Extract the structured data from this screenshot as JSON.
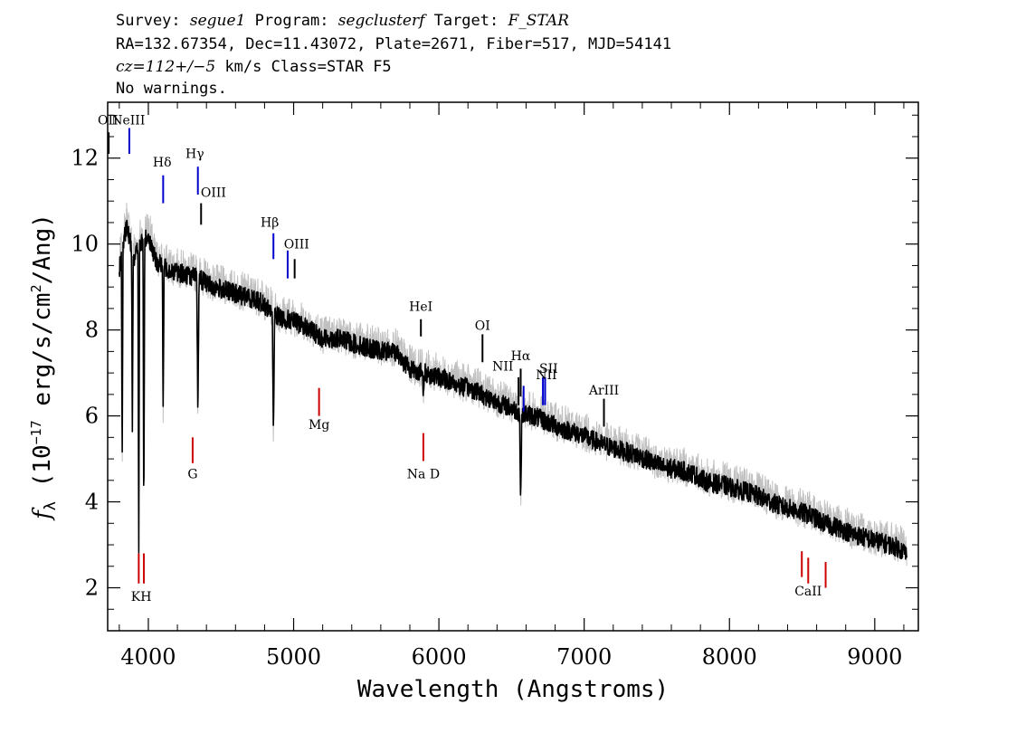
{
  "header": {
    "line1": {
      "survey_label": "Survey: ",
      "survey": "segue1",
      "program_label": " Program: ",
      "program": "segclusterf",
      "target_label": " Target: ",
      "target": "F_STAR"
    },
    "line2": "RA=132.67354, Dec=11.43072, Plate=2671, Fiber=517, MJD=54141",
    "line3": {
      "cz": "cz=112+/−5",
      "rest": " km/s Class=STAR F5"
    },
    "line4": "No warnings."
  },
  "chart_data": {
    "type": "line",
    "xlabel": "Wavelength (Angstroms)",
    "ylabel": {
      "main": "f",
      "sub": "λ",
      "rest1": " (10",
      "sup1": "−17",
      "rest2": " erg/s/cm",
      "sup2": "2",
      "rest3": "/Ang)"
    },
    "xlim": [
      3720,
      9300
    ],
    "ylim": [
      1.0,
      13.3
    ],
    "xticks": [
      4000,
      5000,
      6000,
      7000,
      8000,
      9000
    ],
    "yticks": [
      2,
      4,
      6,
      8,
      10,
      12
    ],
    "xtick_labels": [
      "4000",
      "5000",
      "6000",
      "7000",
      "8000",
      "9000"
    ],
    "ytick_labels": [
      "2",
      "4",
      "6",
      "8",
      "10",
      "12"
    ],
    "grid": false,
    "series": [
      {
        "color": "#c0c0c0",
        "role": "flux",
        "x": [
          3800,
          3850,
          3900,
          3950,
          4000,
          4050,
          4150,
          4250,
          4350,
          4450,
          4550,
          4650,
          4750,
          4900,
          5000,
          5100,
          5200,
          5300,
          5400,
          5500,
          5600,
          5700,
          5800,
          5950,
          6050,
          6150,
          6250,
          6350,
          6450,
          6550,
          6650,
          6750,
          6850,
          6950,
          7050,
          7150,
          7250,
          7350,
          7450,
          7550,
          7650,
          7750,
          7850,
          7950,
          8050,
          8150,
          8250,
          8350,
          8450,
          8550,
          8650,
          8750,
          8850,
          8950,
          9050,
          9150,
          9220
        ],
        "y": [
          9.6,
          10.6,
          9.9,
          10.2,
          10.4,
          9.7,
          9.5,
          9.4,
          9.3,
          9.1,
          9.0,
          8.9,
          8.8,
          8.4,
          8.3,
          8.15,
          7.9,
          7.9,
          7.8,
          7.7,
          7.6,
          7.6,
          7.2,
          7.05,
          6.95,
          6.8,
          6.7,
          6.5,
          6.35,
          6.2,
          6.1,
          5.95,
          5.8,
          5.7,
          5.55,
          5.4,
          5.3,
          5.2,
          5.05,
          4.9,
          4.85,
          4.75,
          4.55,
          4.5,
          4.4,
          4.3,
          4.15,
          4.0,
          3.9,
          3.8,
          3.6,
          3.5,
          3.35,
          3.25,
          3.15,
          3.05,
          2.9
        ]
      },
      {
        "color": "#000000",
        "role": "smoothed",
        "x": [
          3800,
          3850,
          3900,
          3950,
          4000,
          4050,
          4150,
          4250,
          4350,
          4450,
          4550,
          4650,
          4750,
          4900,
          5000,
          5100,
          5200,
          5300,
          5400,
          5500,
          5600,
          5700,
          5800,
          5950,
          6050,
          6150,
          6250,
          6350,
          6450,
          6550,
          6650,
          6750,
          6850,
          6950,
          7050,
          7150,
          7250,
          7350,
          7450,
          7550,
          7650,
          7750,
          7850,
          7950,
          8050,
          8150,
          8250,
          8350,
          8450,
          8550,
          8650,
          8750,
          8850,
          8950,
          9050,
          9150,
          9220
        ],
        "y": [
          9.4,
          10.4,
          9.7,
          10.0,
          10.2,
          9.6,
          9.4,
          9.3,
          9.2,
          9.0,
          8.9,
          8.8,
          8.7,
          8.3,
          8.2,
          8.05,
          7.8,
          7.8,
          7.7,
          7.6,
          7.5,
          7.5,
          7.1,
          6.95,
          6.85,
          6.7,
          6.6,
          6.4,
          6.25,
          6.1,
          6.0,
          5.85,
          5.7,
          5.6,
          5.45,
          5.3,
          5.2,
          5.1,
          4.95,
          4.8,
          4.75,
          4.65,
          4.45,
          4.4,
          4.3,
          4.2,
          4.05,
          3.9,
          3.8,
          3.7,
          3.5,
          3.4,
          3.25,
          3.15,
          3.05,
          2.95,
          2.8
        ]
      }
    ],
    "absorption": [
      {
        "x": 3820,
        "min": 5.2
      },
      {
        "x": 3890,
        "min": 5.6
      },
      {
        "x": 3934,
        "min": 3.0
      },
      {
        "x": 3969,
        "min": 3.4
      },
      {
        "x": 4102,
        "min": 6.0
      },
      {
        "x": 4341,
        "min": 6.0
      },
      {
        "x": 4861,
        "min": 5.4
      },
      {
        "x": 5893,
        "min": 6.5
      },
      {
        "x": 6563,
        "min": 3.95
      }
    ],
    "emission_lines": [
      {
        "label": "OII",
        "x": 3727,
        "top": 12.6,
        "bottom": 12.1,
        "color": "#000000",
        "lx": 3722,
        "ly": 12.78
      },
      {
        "label": "NeIII",
        "x": 3869,
        "top": 12.7,
        "bottom": 12.1,
        "color": "#0000cc",
        "lx": 3862,
        "ly": 12.78
      },
      {
        "label": "Hδ",
        "x": 4102,
        "top": 11.6,
        "bottom": 10.95,
        "color": "#0000cc",
        "lx": 4095,
        "ly": 11.8
      },
      {
        "label": "Hγ",
        "x": 4341,
        "top": 11.8,
        "bottom": 11.15,
        "color": "#0000cc",
        "lx": 4320,
        "ly": 12.0
      },
      {
        "label": "OIII",
        "x": 4363,
        "top": 10.95,
        "bottom": 10.45,
        "color": "#000000",
        "lx": 4448,
        "ly": 11.1
      },
      {
        "label": "Hβ",
        "x": 4861,
        "top": 10.25,
        "bottom": 9.65,
        "color": "#0000cc",
        "lx": 4836,
        "ly": 10.4
      },
      {
        "label": "OIII",
        "x": 4959,
        "top": 9.85,
        "bottom": 9.2,
        "color": "#0000cc",
        "lx": 5020,
        "ly": 9.9
      },
      {
        "label": "OIII",
        "x": 5007,
        "top": 9.65,
        "bottom": 9.2,
        "color": "#000000",
        "lx": 5020,
        "ly": 9.9
      },
      {
        "label": "HeI",
        "x": 5876,
        "top": 8.25,
        "bottom": 7.85,
        "color": "#000000",
        "lx": 5876,
        "ly": 8.45
      },
      {
        "label": "OI",
        "x": 6300,
        "top": 7.9,
        "bottom": 7.25,
        "color": "#000000",
        "lx": 6300,
        "ly": 8.0
      },
      {
        "label": "NII",
        "x": 6548,
        "top": 6.9,
        "bottom": 6.25,
        "color": "#000000",
        "lx": 6440,
        "ly": 7.05
      },
      {
        "label": "Hα",
        "x": 6563,
        "top": 7.1,
        "bottom": 6.45,
        "color": "#000000",
        "lx": 6563,
        "ly": 7.3
      },
      {
        "label": "Hα",
        "x": 6583,
        "top": 6.7,
        "bottom": 6.1,
        "color": "#0000cc",
        "lx": 6563,
        "ly": 7.3
      },
      {
        "label": "NII",
        "x": 6716,
        "top": 6.9,
        "bottom": 6.25,
        "color": "#0000cc",
        "lx": 6740,
        "ly": 6.85
      },
      {
        "label": "SII",
        "x": 6731,
        "top": 6.9,
        "bottom": 6.25,
        "color": "#0000cc",
        "lx": 6755,
        "ly": 7.0
      },
      {
        "label": "ArIII",
        "x": 7136,
        "top": 6.4,
        "bottom": 5.75,
        "color": "#000000",
        "lx": 7136,
        "ly": 6.5
      }
    ],
    "absorption_lines": [
      {
        "label": "KH",
        "x": 3934,
        "top": 2.8,
        "bottom": 2.1,
        "color": "#cc0000",
        "lx": 3951,
        "ly": 1.7
      },
      {
        "label": "KH",
        "x": 3969,
        "top": 2.8,
        "bottom": 2.1,
        "color": "#cc0000",
        "lx": 3951,
        "ly": 1.7
      },
      {
        "label": "G",
        "x": 4305,
        "top": 5.5,
        "bottom": 4.9,
        "color": "#cc0000",
        "lx": 4305,
        "ly": 4.55
      },
      {
        "label": "Mg",
        "x": 5175,
        "top": 6.65,
        "bottom": 6.0,
        "color": "#cc0000",
        "lx": 5175,
        "ly": 5.7
      },
      {
        "label": "Na D",
        "x": 5893,
        "top": 5.6,
        "bottom": 4.95,
        "color": "#cc0000",
        "lx": 5893,
        "ly": 4.55
      },
      {
        "label": "CaII",
        "x": 8498,
        "top": 2.85,
        "bottom": 2.25,
        "color": "#cc0000",
        "lx": 8542,
        "ly": 1.82
      },
      {
        "label": "CaII",
        "x": 8542,
        "top": 2.7,
        "bottom": 2.1,
        "color": "#cc0000",
        "lx": 8542,
        "ly": 1.82
      },
      {
        "label": "CaII",
        "x": 8662,
        "top": 2.6,
        "bottom": 2.0,
        "color": "#cc0000",
        "lx": 8542,
        "ly": 1.82
      }
    ]
  }
}
